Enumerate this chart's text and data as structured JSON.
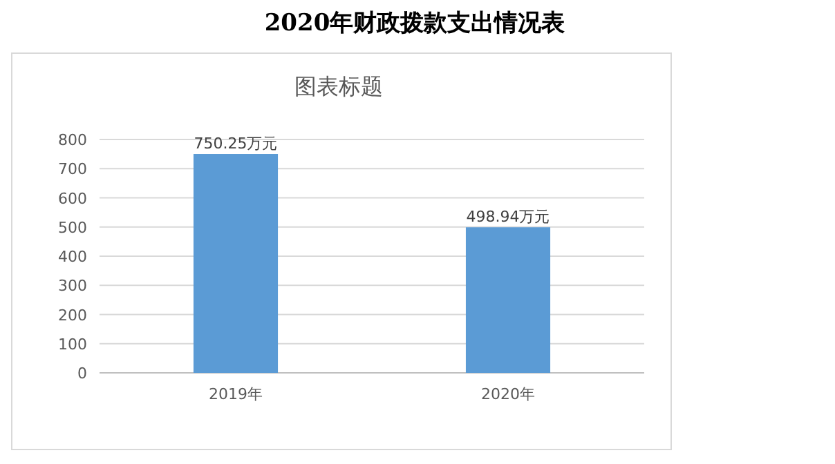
{
  "chart_data": {
    "type": "bar",
    "title": "2020年财政拨款支出情况表",
    "subtitle": "图表标题",
    "categories": [
      "2019年",
      "2020年"
    ],
    "values": [
      750.25,
      498.94
    ],
    "value_labels": [
      "750.25万元",
      "498.94万元"
    ],
    "color": "#5b9bd5",
    "ylim": [
      0,
      800
    ],
    "yticks": [
      0,
      100,
      200,
      300,
      400,
      500,
      600,
      700,
      800
    ],
    "grid": "y"
  }
}
